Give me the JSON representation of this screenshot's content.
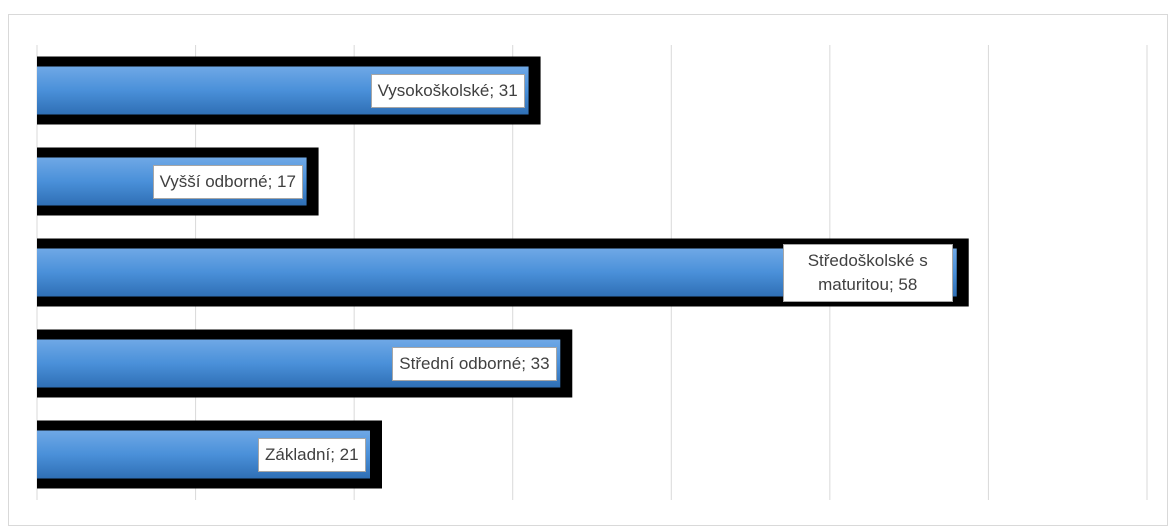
{
  "chart_data": {
    "type": "barh",
    "value_labels": [
      "Vysokoškolské; 31",
      "Vyšší odborné; 17",
      "Středoškolské s maturitou; 58",
      "Střední odborné; 33",
      "Základní; 21"
    ],
    "values": [
      31,
      17,
      58,
      33,
      21
    ],
    "color": "#4a90d9",
    "edge_color": "#000000",
    "xlim": [
      0,
      70
    ],
    "xticks": [
      0,
      10,
      20,
      30,
      40,
      50,
      60,
      70
    ],
    "grid": true
  }
}
